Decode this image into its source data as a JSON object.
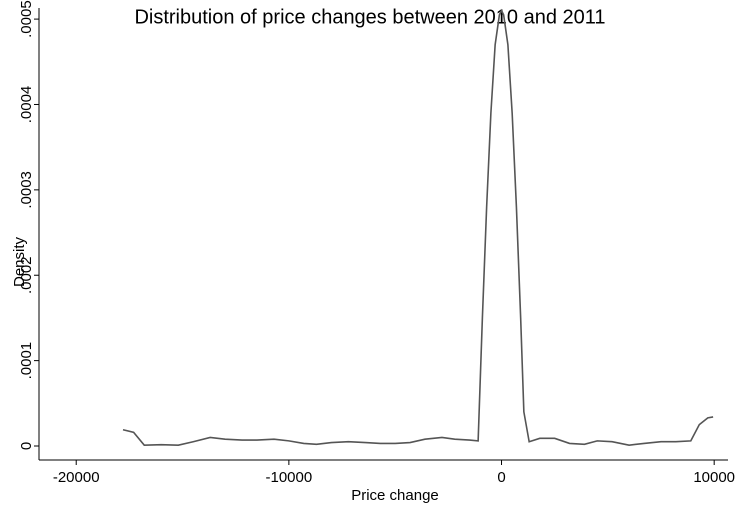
{
  "chart_data": {
    "type": "line",
    "title": "Distribution of price changes between 2010 and 2011",
    "x_label": "Price change",
    "y_label": "Density",
    "x": [
      -17800,
      -17300,
      -16800,
      -16000,
      -15200,
      -14500,
      -13700,
      -13000,
      -12200,
      -11500,
      -10700,
      -10000,
      -9300,
      -8700,
      -8000,
      -7200,
      -6400,
      -5700,
      -5000,
      -4300,
      -3600,
      -2800,
      -2200,
      -1500,
      -1100,
      -900,
      -700,
      -500,
      -300,
      -100,
      0,
      100,
      300,
      500,
      700,
      900,
      1050,
      1300,
      1800,
      2500,
      3200,
      3900,
      4500,
      5200,
      6000,
      6700,
      7500,
      8200,
      8900,
      9300,
      9700,
      9950
    ],
    "series": [
      {
        "name": "Density",
        "color": "#555555",
        "values": [
          1.9e-05,
          1.6e-05,
          1e-06,
          1.5e-06,
          1e-06,
          5e-06,
          1e-05,
          8e-06,
          7e-06,
          7e-06,
          8e-06,
          6e-06,
          3e-06,
          2e-06,
          4e-06,
          5e-06,
          4e-06,
          3e-06,
          3e-06,
          4e-06,
          8e-06,
          1e-05,
          8e-06,
          7e-06,
          6e-06,
          0.00015,
          0.00028,
          0.00039,
          0.00047,
          0.000505,
          0.00051,
          0.000505,
          0.00047,
          0.00039,
          0.00028,
          0.00015,
          4e-05,
          5e-06,
          9e-06,
          9e-06,
          3e-06,
          2e-06,
          6e-06,
          5e-06,
          1e-06,
          3e-06,
          5e-06,
          5e-06,
          6e-06,
          2.5e-05,
          3.3e-05,
          3.4e-05
        ]
      }
    ],
    "xlim": [
      -21750,
      10650
    ],
    "xticks": [
      -20000,
      -10000,
      0,
      10000
    ],
    "ylim": [
      -1.64e-05,
      0.000513
    ],
    "yticks": [
      0,
      {
        "value": 0.0001,
        "label": ".0001"
      },
      {
        "value": 0.0002,
        "label": ".0002"
      },
      {
        "value": 0.0003,
        "label": ".0003"
      },
      {
        "value": 0.0004,
        "label": ".0004"
      },
      {
        "value": 0.0005,
        "label": ".0005"
      }
    ],
    "grid": false
  }
}
